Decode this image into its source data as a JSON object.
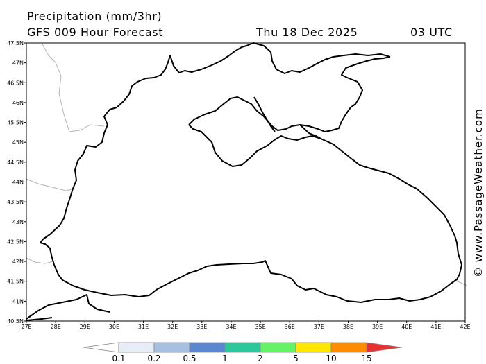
{
  "header": {
    "title": "Precipitation (mm/3hr)",
    "model": "GFS 009 Hour Forecast",
    "date": "Thu 18 Dec 2025",
    "time": "03 UTC"
  },
  "credit": "© www.PassageWeather.com",
  "axes": {
    "lon_labels": [
      "27E",
      "28E",
      "29E",
      "30E",
      "31E",
      "32E",
      "33E",
      "34E",
      "35E",
      "36E",
      "37E",
      "38E",
      "39E",
      "40E",
      "41E",
      "42E"
    ],
    "lat_labels": [
      "47.5N",
      "47N",
      "46.5N",
      "46N",
      "45.5N",
      "45N",
      "44.5N",
      "44N",
      "43.5N",
      "43N",
      "42.5N",
      "42N",
      "41.5N",
      "41N",
      "40.5N"
    ]
  },
  "legend": {
    "labels": [
      "0.1",
      "0.2",
      "0.5",
      "1",
      "2",
      "5",
      "10",
      "15"
    ],
    "colors": [
      "#ffffff",
      "#e6edf7",
      "#a8c0e0",
      "#5b87cf",
      "#2cc79a",
      "#66f266",
      "#ffe600",
      "#ff8c00",
      "#e83232"
    ]
  }
}
